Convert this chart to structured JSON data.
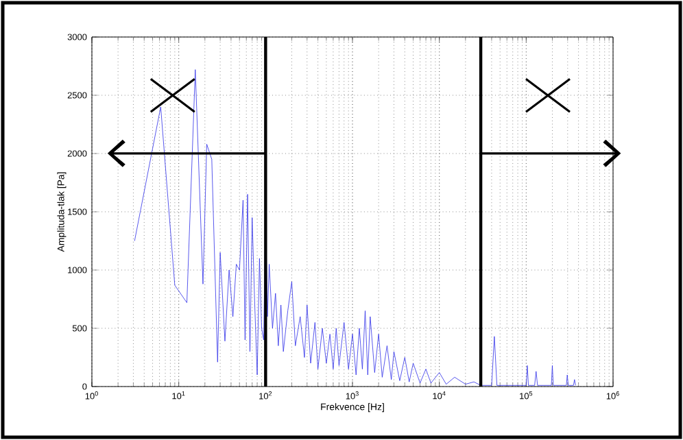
{
  "chart_data": {
    "type": "line",
    "xlabel": "Frekvence [Hz]",
    "ylabel": "Amplituda-tlak [Pa]",
    "log": "x",
    "grid": true,
    "xlim": [
      1,
      1000000
    ],
    "ylim": [
      0,
      3000
    ],
    "xticks": [
      {
        "value": 1,
        "label": "10$^{0}$"
      },
      {
        "value": 10,
        "label": "10$^{1}$"
      },
      {
        "value": 100,
        "label": "10$^{2}$"
      },
      {
        "value": 1000,
        "label": "10$^{3}$"
      },
      {
        "value": 10000,
        "label": "10$^{4}$"
      },
      {
        "value": 100000,
        "label": "10$^{5}$"
      },
      {
        "value": 1000000,
        "label": "10$^{6}$"
      }
    ],
    "yticks": [
      0,
      500,
      1000,
      1500,
      2000,
      2500,
      3000
    ],
    "ref_lines": [
      {
        "axis": "x",
        "value": 100,
        "color": "#000000"
      },
      {
        "axis": "x",
        "value": 30000,
        "color": "#000000"
      }
    ],
    "series": [
      {
        "color": "#2f2fe8",
        "x": [
          3.1,
          6.2,
          9,
          12.4,
          15.5,
          19,
          21,
          24,
          28,
          30,
          34,
          38,
          42,
          46,
          50,
          55,
          58,
          62,
          66,
          70,
          75,
          80,
          85,
          90,
          95,
          100,
          105,
          110,
          120,
          130,
          140,
          150,
          160,
          180,
          200,
          220,
          250,
          280,
          300,
          330,
          370,
          400,
          450,
          500,
          550,
          600,
          650,
          700,
          800,
          900,
          1000,
          1100,
          1200,
          1300,
          1400,
          1500,
          1600,
          1800,
          2000,
          2200,
          2500,
          2800,
          3000,
          3500,
          4000,
          4500,
          5000,
          6000,
          7000,
          8000,
          10000,
          12000,
          15000,
          20000,
          25000,
          30000,
          40000,
          43000,
          46000,
          100000,
          103000,
          106000,
          125000,
          130000,
          135000,
          195000,
          200000,
          205000,
          290000,
          297000,
          305000,
          350000,
          360000,
          370000
        ],
        "values": [
          1250,
          2400,
          870,
          720,
          2720,
          880,
          2080,
          1950,
          210,
          1150,
          390,
          1000,
          600,
          1050,
          1000,
          1600,
          400,
          1650,
          300,
          1450,
          700,
          100,
          1100,
          500,
          400,
          1500,
          600,
          1050,
          500,
          800,
          350,
          700,
          300,
          650,
          900,
          350,
          600,
          250,
          700,
          200,
          550,
          150,
          500,
          200,
          450,
          150,
          500,
          180,
          550,
          150,
          450,
          100,
          500,
          150,
          650,
          100,
          600,
          120,
          450,
          80,
          350,
          60,
          300,
          50,
          250,
          40,
          200,
          30,
          150,
          30,
          120,
          20,
          80,
          20,
          40,
          10,
          10,
          430,
          10,
          10,
          180,
          10,
          10,
          130,
          10,
          10,
          180,
          10,
          10,
          100,
          10,
          10,
          60,
          10
        ]
      }
    ]
  }
}
